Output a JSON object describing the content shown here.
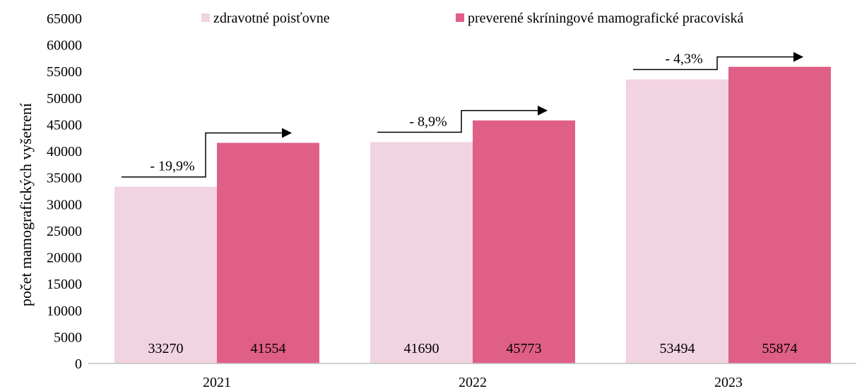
{
  "chart_data": {
    "type": "bar",
    "title": "",
    "xlabel": "",
    "ylabel": "počet mamografických vyšetrení",
    "categories": [
      "2021",
      "2022",
      "2023"
    ],
    "ylim": [
      0,
      65000
    ],
    "yticks": [
      0,
      5000,
      10000,
      15000,
      20000,
      25000,
      30000,
      35000,
      40000,
      45000,
      50000,
      55000,
      60000,
      65000
    ],
    "grid": false,
    "legend_position": "top",
    "series": [
      {
        "name": "zdravotné poisťovne",
        "color": "#f2d3e1",
        "values": [
          33270,
          41690,
          53494
        ]
      },
      {
        "name": "preverené skríningové mamografické pracoviská",
        "color": "#e05f87",
        "values": [
          41554,
          45773,
          55874
        ]
      }
    ],
    "annotations": [
      "- 19,9%",
      "- 8,9%",
      "- 4,3%"
    ]
  }
}
